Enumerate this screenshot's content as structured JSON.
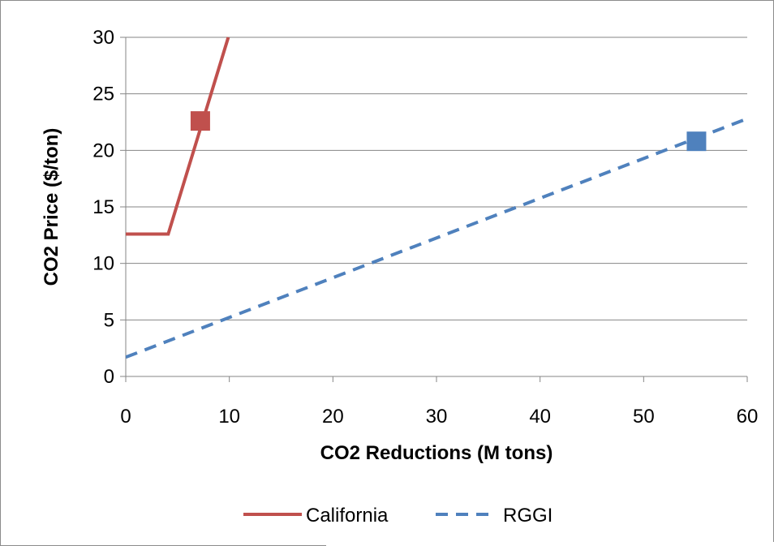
{
  "chart_data": {
    "type": "line",
    "title": "",
    "xlabel": "CO2 Reductions (M tons)",
    "ylabel": "CO2 Price ($/ton)",
    "xlim": [
      0,
      60
    ],
    "ylim": [
      0,
      30
    ],
    "xticks": [
      0,
      10,
      20,
      30,
      40,
      50,
      60
    ],
    "yticks": [
      0,
      5,
      10,
      15,
      20,
      25,
      30
    ],
    "grid": "horizontal",
    "legend_position": "bottom",
    "series": [
      {
        "name": "California",
        "color": "#C0504D",
        "style": "solid",
        "x": [
          0,
          4.1,
          9.9
        ],
        "y": [
          12.6,
          12.6,
          30
        ],
        "marker": {
          "x": 7.2,
          "y": 22.6,
          "shape": "square"
        }
      },
      {
        "name": "RGGI",
        "color": "#4F81BD",
        "style": "dashed",
        "x": [
          0,
          60
        ],
        "y": [
          1.7,
          22.8
        ],
        "marker": {
          "x": 55.1,
          "y": 20.8,
          "shape": "square"
        }
      }
    ]
  }
}
